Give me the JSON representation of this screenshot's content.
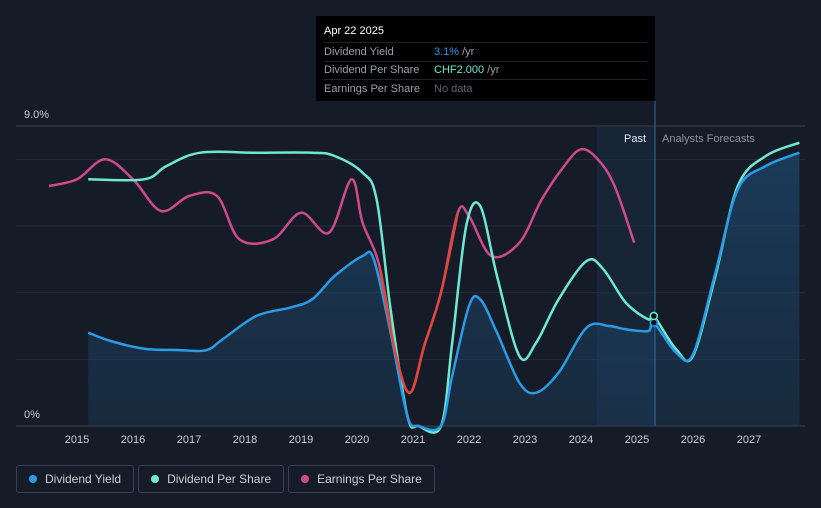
{
  "tooltip": {
    "date": "Apr 22 2025",
    "rows": [
      {
        "label": "Dividend Yield",
        "value": "3.1%",
        "unit": "/yr",
        "color": "#2b9be6"
      },
      {
        "label": "Dividend Per Share",
        "value": "CHF2.000",
        "unit": "/yr",
        "color": "#6fe8d0"
      },
      {
        "label": "Earnings Per Share",
        "value": "No data",
        "unit": "",
        "color": "#5f6672"
      }
    ]
  },
  "legend": [
    {
      "label": "Dividend Yield",
      "color": "#2b9be6"
    },
    {
      "label": "Dividend Per Share",
      "color": "#6fe8d0"
    },
    {
      "label": "Earnings Per Share",
      "color": "#d0498a"
    }
  ],
  "chart_data": {
    "type": "line",
    "y_top_label": "9.0%",
    "y_bottom_label": "0%",
    "ylim": [
      0,
      9.0
    ],
    "x_ticks": [
      "2015",
      "2016",
      "2017",
      "2018",
      "2019",
      "2020",
      "2021",
      "2022",
      "2023",
      "2024",
      "2025",
      "2026",
      "2027"
    ],
    "past_label": "Past",
    "forecast_label": "Analysts Forecasts",
    "past_forecast_boundary": 2025.3,
    "series": [
      {
        "name": "Dividend Yield",
        "color": "#2b9be6",
        "points": [
          [
            2015.2,
            2.8
          ],
          [
            2015.6,
            2.55
          ],
          [
            2016.2,
            2.32
          ],
          [
            2016.8,
            2.28
          ],
          [
            2017.3,
            2.27
          ],
          [
            2017.6,
            2.6
          ],
          [
            2018.2,
            3.3
          ],
          [
            2018.8,
            3.55
          ],
          [
            2019.2,
            3.8
          ],
          [
            2019.6,
            4.5
          ],
          [
            2020.1,
            5.1
          ],
          [
            2020.3,
            5.0
          ],
          [
            2020.6,
            2.8
          ],
          [
            2020.9,
            0.3
          ],
          [
            2021.1,
            0
          ],
          [
            2021.5,
            0
          ],
          [
            2021.7,
            1.5
          ],
          [
            2022.0,
            3.6
          ],
          [
            2022.2,
            3.8
          ],
          [
            2022.5,
            2.8
          ],
          [
            2022.9,
            1.3
          ],
          [
            2023.2,
            1.0
          ],
          [
            2023.6,
            1.6
          ],
          [
            2024.1,
            2.95
          ],
          [
            2024.5,
            3.0
          ],
          [
            2024.8,
            2.9
          ],
          [
            2025.2,
            2.85
          ],
          [
            2025.3,
            3.1
          ],
          [
            2025.7,
            2.2
          ],
          [
            2026.0,
            2.15
          ],
          [
            2026.4,
            4.6
          ],
          [
            2026.8,
            7.1
          ],
          [
            2027.3,
            7.8
          ],
          [
            2027.9,
            8.2
          ]
        ]
      },
      {
        "name": "Dividend Per Share",
        "color": "#6fe8d0",
        "points": [
          [
            2015.2,
            7.4
          ],
          [
            2016.2,
            7.4
          ],
          [
            2016.6,
            7.8
          ],
          [
            2017.2,
            8.2
          ],
          [
            2018.2,
            8.2
          ],
          [
            2019.2,
            8.2
          ],
          [
            2019.6,
            8.1
          ],
          [
            2020.1,
            7.6
          ],
          [
            2020.35,
            6.8
          ],
          [
            2020.6,
            3.5
          ],
          [
            2020.9,
            0.3
          ],
          [
            2021.1,
            0
          ],
          [
            2021.5,
            0
          ],
          [
            2021.7,
            2.5
          ],
          [
            2021.95,
            6.0
          ],
          [
            2022.2,
            6.6
          ],
          [
            2022.5,
            4.5
          ],
          [
            2022.9,
            2.1
          ],
          [
            2023.2,
            2.5
          ],
          [
            2023.6,
            3.8
          ],
          [
            2024.1,
            4.95
          ],
          [
            2024.4,
            4.7
          ],
          [
            2024.8,
            3.7
          ],
          [
            2025.2,
            3.2
          ],
          [
            2025.3,
            3.3
          ],
          [
            2025.7,
            2.3
          ],
          [
            2026.0,
            2.1
          ],
          [
            2026.4,
            4.5
          ],
          [
            2026.8,
            7.2
          ],
          [
            2027.3,
            8.1
          ],
          [
            2027.9,
            8.5
          ]
        ]
      },
      {
        "name": "Earnings Per Share",
        "color": "#d0498a",
        "points": [
          [
            2014.5,
            7.2
          ],
          [
            2015.0,
            7.4
          ],
          [
            2015.5,
            8.0
          ],
          [
            2016.0,
            7.4
          ],
          [
            2016.5,
            6.45
          ],
          [
            2017.0,
            6.9
          ],
          [
            2017.5,
            6.9
          ],
          [
            2017.9,
            5.6
          ],
          [
            2018.5,
            5.6
          ],
          [
            2019.0,
            6.4
          ],
          [
            2019.5,
            5.8
          ],
          [
            2019.9,
            7.4
          ],
          [
            2020.1,
            6.1
          ],
          [
            2020.4,
            4.8
          ],
          [
            2020.7,
            2.1
          ],
          [
            2020.95,
            1.0
          ],
          [
            2021.2,
            2.4
          ],
          [
            2021.5,
            4.0
          ],
          [
            2021.8,
            6.4
          ],
          [
            2022.0,
            6.3
          ],
          [
            2022.4,
            5.1
          ],
          [
            2022.9,
            5.5
          ],
          [
            2023.3,
            6.8
          ],
          [
            2023.7,
            7.8
          ],
          [
            2024.0,
            8.3
          ],
          [
            2024.3,
            8.0
          ],
          [
            2024.6,
            7.2
          ],
          [
            2024.95,
            5.5
          ]
        ]
      }
    ]
  }
}
